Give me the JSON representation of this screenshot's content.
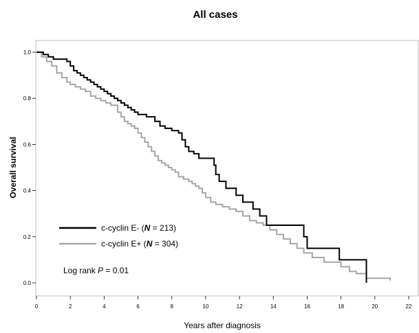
{
  "chart_data": {
    "type": "line",
    "step": true,
    "title": "All cases",
    "xlabel": "Years after diagnosis",
    "ylabel": "Overall survival",
    "xlim": [
      0,
      22
    ],
    "ylim": [
      0,
      1.0
    ],
    "xticks": [
      "0",
      "2",
      "4",
      "6",
      "8",
      "10",
      "12",
      "14",
      "16",
      "18",
      "20",
      "22"
    ],
    "yticks": [
      "0.0",
      "0.2",
      "0.4",
      "0.6",
      "0.8",
      "1.0"
    ],
    "grid": false,
    "legend_position": "bottom-left",
    "legend": [
      {
        "prefix": "c-cyclin E- (",
        "N": "N",
        "suffix": " = 213)"
      },
      {
        "prefix": "c-cyclin E+ (",
        "N": "N",
        "suffix": " = 304)"
      }
    ],
    "annotation": {
      "prefix": "Log rank ",
      "p": "P",
      "suffix": " = 0.01"
    },
    "colors": {
      "series_1": "#000000",
      "series_2": "#a6a6a6"
    },
    "series": [
      {
        "color": "#000000",
        "x": [
          0,
          0.4,
          0.7,
          1.0,
          1.4,
          1.8,
          2.0,
          2.2,
          2.4,
          2.6,
          2.8,
          3.0,
          3.2,
          3.4,
          3.6,
          3.8,
          4.0,
          4.2,
          4.4,
          4.6,
          4.8,
          5.0,
          5.2,
          5.4,
          5.6,
          5.8,
          6.0,
          6.5,
          7.0,
          7.3,
          7.6,
          8.0,
          8.4,
          8.6,
          8.8,
          9.0,
          9.3,
          9.6,
          10.5,
          10.6,
          10.8,
          11.2,
          11.8,
          12.2,
          12.8,
          13.2,
          13.6,
          14.0,
          15.2,
          15.8,
          16.0,
          17.0,
          17.9,
          18.5,
          19.5
        ],
        "y": [
          1.0,
          0.99,
          0.98,
          0.97,
          0.97,
          0.96,
          0.94,
          0.92,
          0.91,
          0.9,
          0.89,
          0.88,
          0.87,
          0.86,
          0.85,
          0.84,
          0.83,
          0.82,
          0.81,
          0.8,
          0.79,
          0.78,
          0.77,
          0.76,
          0.75,
          0.74,
          0.73,
          0.72,
          0.7,
          0.68,
          0.67,
          0.66,
          0.65,
          0.62,
          0.59,
          0.57,
          0.56,
          0.54,
          0.51,
          0.47,
          0.44,
          0.41,
          0.38,
          0.35,
          0.32,
          0.29,
          0.25,
          0.25,
          0.25,
          0.2,
          0.15,
          0.15,
          0.1,
          0.1,
          0.0
        ]
      },
      {
        "color": "#a6a6a6",
        "x": [
          0,
          0.3,
          0.6,
          0.9,
          1.2,
          1.5,
          1.8,
          2.0,
          2.3,
          2.6,
          2.9,
          3.2,
          3.5,
          3.8,
          4.1,
          4.4,
          4.8,
          5.0,
          5.2,
          5.4,
          5.6,
          5.8,
          6.0,
          6.2,
          6.4,
          6.6,
          6.8,
          7.0,
          7.2,
          7.4,
          7.6,
          7.8,
          8.0,
          8.2,
          8.4,
          8.7,
          9.0,
          9.2,
          9.4,
          9.6,
          9.8,
          10.0,
          10.3,
          10.6,
          11.0,
          11.4,
          11.8,
          12.2,
          12.6,
          13.0,
          13.4,
          13.8,
          14.2,
          14.6,
          15.0,
          15.4,
          15.8,
          16.3,
          17.0,
          18.0,
          18.5,
          18.9,
          19.5,
          20.9
        ],
        "y": [
          1.0,
          0.98,
          0.96,
          0.94,
          0.91,
          0.89,
          0.87,
          0.86,
          0.85,
          0.84,
          0.83,
          0.81,
          0.8,
          0.79,
          0.78,
          0.77,
          0.74,
          0.72,
          0.7,
          0.69,
          0.68,
          0.67,
          0.65,
          0.63,
          0.61,
          0.59,
          0.57,
          0.55,
          0.53,
          0.52,
          0.51,
          0.5,
          0.49,
          0.48,
          0.46,
          0.45,
          0.44,
          0.43,
          0.42,
          0.41,
          0.39,
          0.37,
          0.35,
          0.34,
          0.33,
          0.32,
          0.31,
          0.29,
          0.27,
          0.26,
          0.25,
          0.23,
          0.21,
          0.19,
          0.17,
          0.15,
          0.13,
          0.11,
          0.09,
          0.07,
          0.05,
          0.04,
          0.02,
          0.01
        ]
      }
    ]
  }
}
